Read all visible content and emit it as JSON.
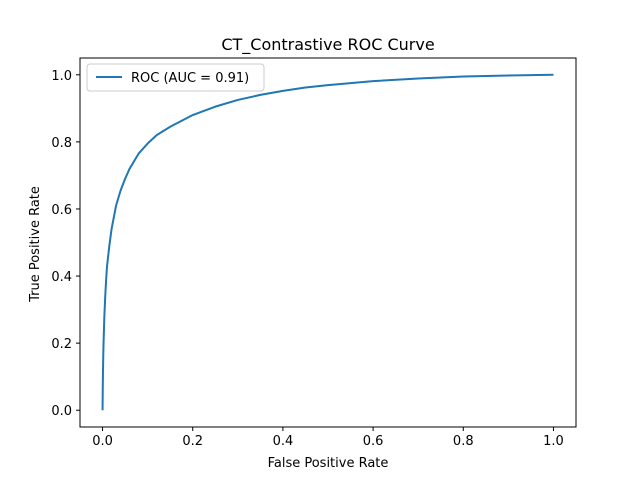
{
  "chart_data": {
    "type": "line",
    "title": "CT_Contrastive ROC Curve",
    "xlabel": "False Positive Rate",
    "ylabel": "True Positive Rate",
    "xlim": [
      -0.05,
      1.05
    ],
    "ylim": [
      -0.05,
      1.05
    ],
    "xticks": [
      "0.0",
      "0.2",
      "0.4",
      "0.6",
      "0.8",
      "1.0"
    ],
    "yticks": [
      "0.0",
      "0.2",
      "0.4",
      "0.6",
      "0.8",
      "1.0"
    ],
    "grid": false,
    "legend_position": "upper left",
    "series": [
      {
        "name": "ROC (AUC = 0.91)",
        "color": "#1f77b4",
        "x": [
          0.0,
          0.0005,
          0.001,
          0.002,
          0.004,
          0.006,
          0.008,
          0.01,
          0.015,
          0.02,
          0.03,
          0.04,
          0.05,
          0.06,
          0.08,
          0.1,
          0.12,
          0.15,
          0.2,
          0.25,
          0.3,
          0.35,
          0.4,
          0.45,
          0.5,
          0.6,
          0.7,
          0.8,
          0.9,
          1.0
        ],
        "y": [
          0.0,
          0.07,
          0.12,
          0.19,
          0.28,
          0.34,
          0.39,
          0.43,
          0.49,
          0.54,
          0.61,
          0.655,
          0.69,
          0.72,
          0.765,
          0.795,
          0.82,
          0.845,
          0.88,
          0.905,
          0.925,
          0.94,
          0.952,
          0.962,
          0.969,
          0.981,
          0.989,
          0.995,
          0.998,
          1.0
        ]
      }
    ]
  }
}
